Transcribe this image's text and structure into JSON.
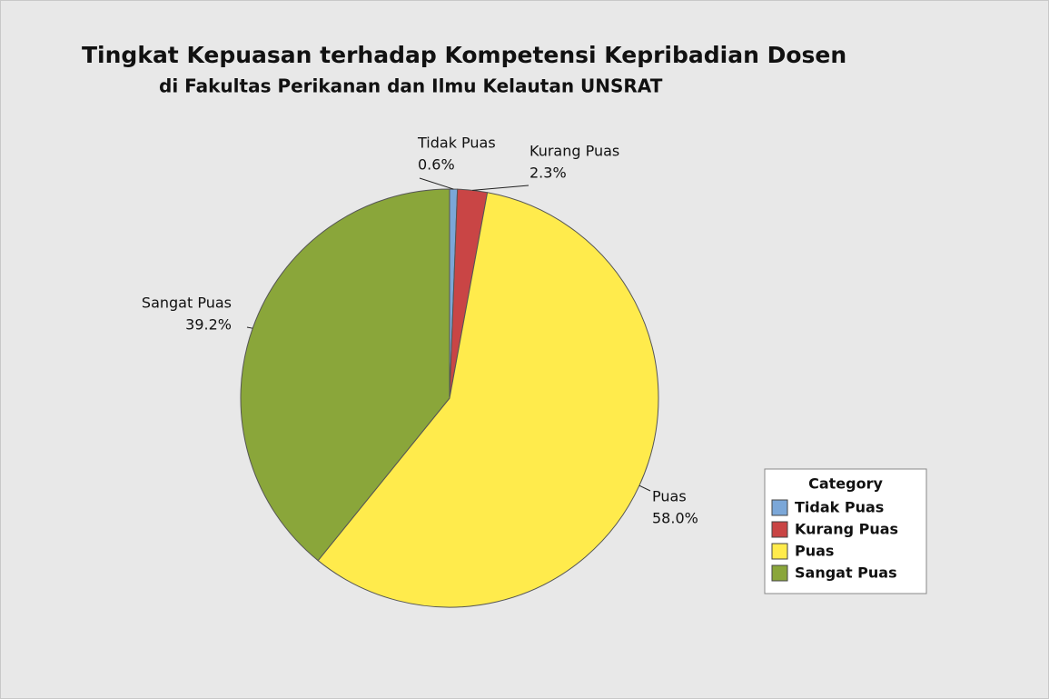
{
  "chart_data": {
    "type": "pie",
    "title": "Tingkat Kepuasan terhadap Kompetensi Kepribadian Dosen",
    "subtitle": "di Fakultas Perikanan dan Ilmu Kelautan UNSRAT",
    "categories": [
      "Tidak Puas",
      "Kurang Puas",
      "Puas",
      "Sangat Puas"
    ],
    "values": [
      0.6,
      2.3,
      58.0,
      39.2
    ],
    "value_labels": [
      "0.6%",
      "2.3%",
      "58.0%",
      "39.2%"
    ],
    "colors": [
      "#7ba7d8",
      "#c94545",
      "#ffeb4c",
      "#8aa63a"
    ],
    "legend_title": "Category",
    "legend_position": "right"
  }
}
